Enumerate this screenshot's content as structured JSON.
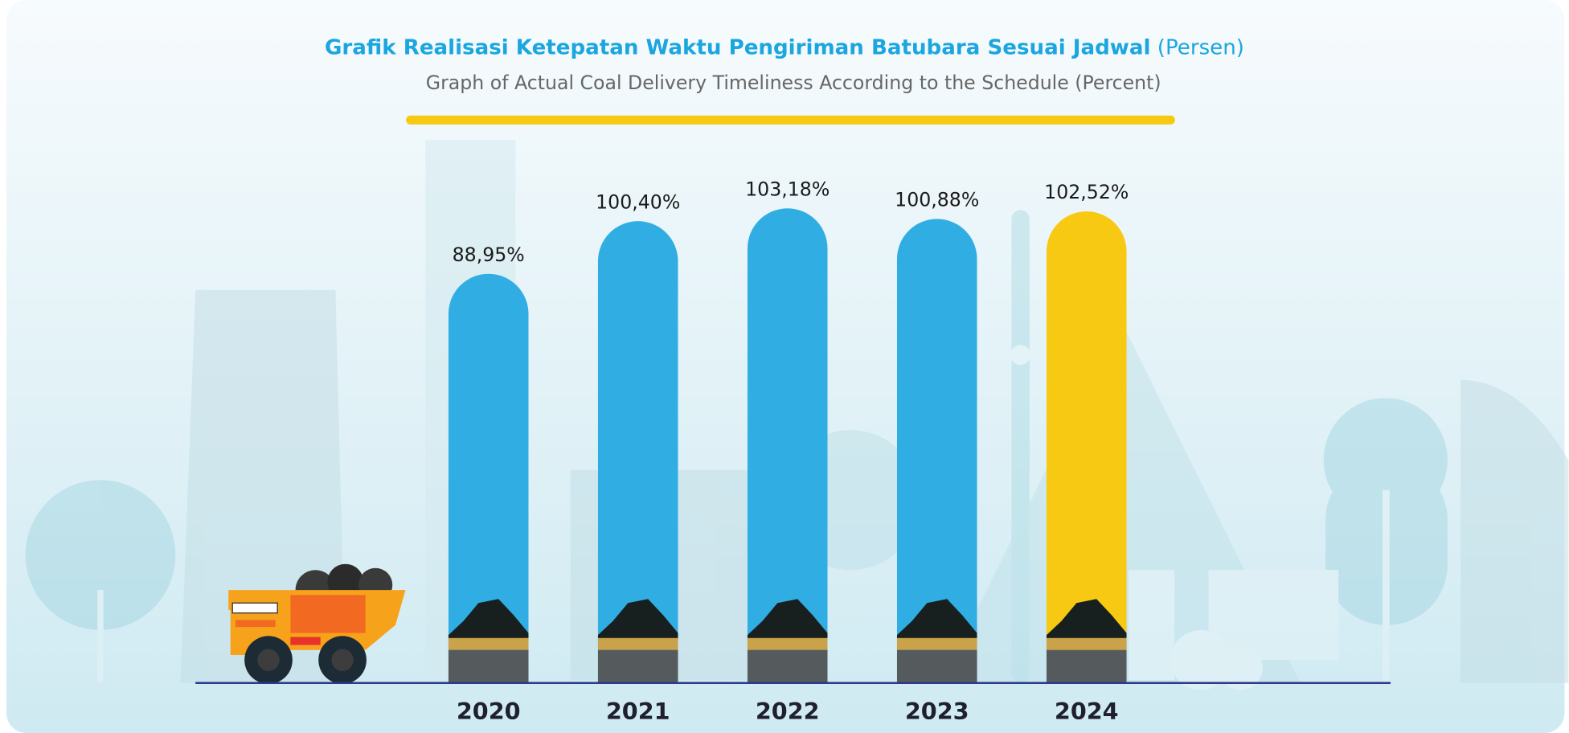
{
  "chart_data": {
    "type": "bar",
    "title": "Grafik Realisasi Ketepatan Waktu Pengiriman Batubara Sesuai Jadwal",
    "title_unit": "(Persen)",
    "subtitle": "Graph of Actual Coal Delivery Timeliness According to the Schedule (Percent)",
    "categories": [
      "2020",
      "2021",
      "2022",
      "2023",
      "2024"
    ],
    "values": [
      88.95,
      100.4,
      103.18,
      100.88,
      102.52
    ],
    "value_labels": [
      "88,95%",
      "100,40%",
      "103,18%",
      "100,88%",
      "102,52%"
    ],
    "colors": [
      "#30ade2",
      "#30ade2",
      "#30ade2",
      "#30ade2",
      "#f7c912"
    ]
  }
}
